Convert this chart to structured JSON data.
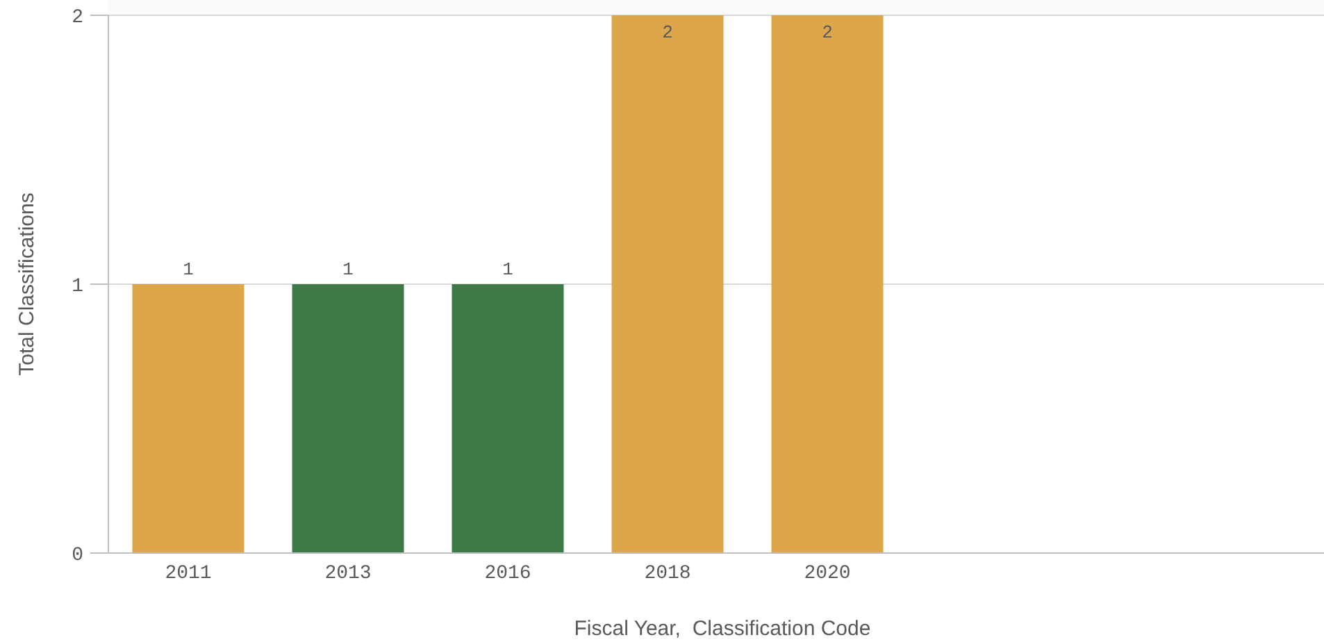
{
  "chart_data": {
    "type": "bar",
    "xlabel": "Fiscal Year,  Classification Code",
    "ylabel": "Total Classifications",
    "categories": [
      "2011",
      "2013",
      "2016",
      "2018",
      "2020"
    ],
    "values": [
      1,
      1,
      1,
      2,
      2
    ],
    "colors": [
      "#dda64a",
      "#3d7a48",
      "#3d7a48",
      "#dda64a",
      "#dda64a"
    ],
    "ylim": [
      0,
      2
    ],
    "yticks": [
      0,
      1,
      2
    ],
    "grid": "y",
    "data_labels": true
  }
}
